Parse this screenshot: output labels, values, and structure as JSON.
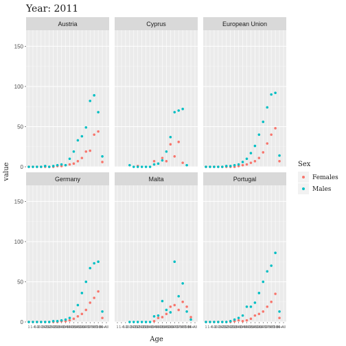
{
  "chart_data": {
    "type": "scatter",
    "title": "Year: 2011",
    "xlabel": "Age",
    "ylabel": "value",
    "ylim": [
      0,
      170
    ],
    "yticks": [
      0,
      50,
      100,
      150
    ],
    "grid": true,
    "legend": {
      "title": "Sex",
      "placement": "right",
      "entries": [
        {
          "name": "Females",
          "color": "#F8766D"
        },
        {
          "name": "Males",
          "color": "#00BFC4"
        }
      ]
    },
    "categories": [
      "1",
      "1-4",
      "5-9",
      "10-14",
      "15-19",
      "20-24",
      "25-29",
      "30-34",
      "35-39",
      "40-44",
      "45-49",
      "50-54",
      "55-59",
      "60-64",
      "65-69",
      "70-74",
      "75-79",
      "80-84",
      "85+",
      "All"
    ],
    "panels": [
      {
        "name": "Austria",
        "series": [
          {
            "name": "Females",
            "values": [
              0,
              0,
              0,
              0,
              0,
              0,
              0,
              1,
              1,
              2,
              3,
              4,
              7,
              11,
              19,
              20,
              40,
              44,
              6,
              null
            ]
          },
          {
            "name": "Males",
            "values": [
              0,
              0,
              0,
              0,
              1,
              0,
              1,
              2,
              3,
              2,
              10,
              19,
              33,
              38,
              49,
              82,
              89,
              68,
              13,
              null
            ]
          }
        ]
      },
      {
        "name": "Cyprus",
        "series": [
          {
            "name": "Females",
            "values": [
              null,
              null,
              null,
              null,
              null,
              1,
              null,
              null,
              null,
              7,
              null,
              11,
              7,
              28,
              13,
              31,
              5,
              null,
              null,
              null
            ]
          },
          {
            "name": "Males",
            "values": [
              null,
              null,
              null,
              2,
              0,
              0,
              0,
              0,
              0,
              3,
              4,
              8,
              19,
              37,
              68,
              70,
              72,
              2,
              null,
              null
            ]
          }
        ]
      },
      {
        "name": "European Union",
        "series": [
          {
            "name": "Females",
            "values": [
              0,
              0,
              0,
              0,
              0,
              0,
              0,
              0,
              1,
              2,
              3,
              5,
              7,
              11,
              18,
              29,
              40,
              48,
              7,
              null
            ]
          },
          {
            "name": "Males",
            "values": [
              0,
              0,
              0,
              0,
              0,
              1,
              1,
              2,
              3,
              6,
              10,
              17,
              26,
              40,
              56,
              74,
              90,
              92,
              14,
              null
            ]
          }
        ]
      },
      {
        "name": "Germany",
        "series": [
          {
            "name": "Females",
            "values": [
              0,
              0,
              0,
              0,
              0,
              0,
              0,
              0,
              1,
              1,
              2,
              4,
              7,
              10,
              15,
              24,
              30,
              38,
              5,
              null
            ]
          },
          {
            "name": "Males",
            "values": [
              0,
              0,
              0,
              0,
              0,
              0,
              1,
              1,
              2,
              3,
              5,
              13,
              21,
              36,
              50,
              67,
              73,
              75,
              13,
              null
            ]
          }
        ]
      },
      {
        "name": "Malta",
        "series": [
          {
            "name": "Females",
            "values": [
              null,
              null,
              null,
              null,
              null,
              null,
              null,
              null,
              null,
              1,
              5,
              6,
              10,
              19,
              21,
              15,
              25,
              19,
              6,
              null
            ]
          },
          {
            "name": "Males",
            "values": [
              null,
              null,
              null,
              0,
              0,
              0,
              0,
              0,
              0,
              7,
              8,
              26,
              15,
              12,
              75,
              32,
              48,
              13,
              3,
              null
            ]
          }
        ]
      },
      {
        "name": "Portugal",
        "series": [
          {
            "name": "Females",
            "values": [
              0,
              0,
              0,
              0,
              0,
              0,
              0,
              1,
              2,
              1,
              2,
              4,
              8,
              10,
              13,
              19,
              25,
              35,
              5,
              null
            ]
          },
          {
            "name": "Males",
            "values": [
              0,
              0,
              0,
              0,
              0,
              0,
              1,
              3,
              5,
              8,
              19,
              19,
              24,
              36,
              50,
              63,
              70,
              86,
              13,
              null
            ]
          }
        ]
      }
    ]
  }
}
